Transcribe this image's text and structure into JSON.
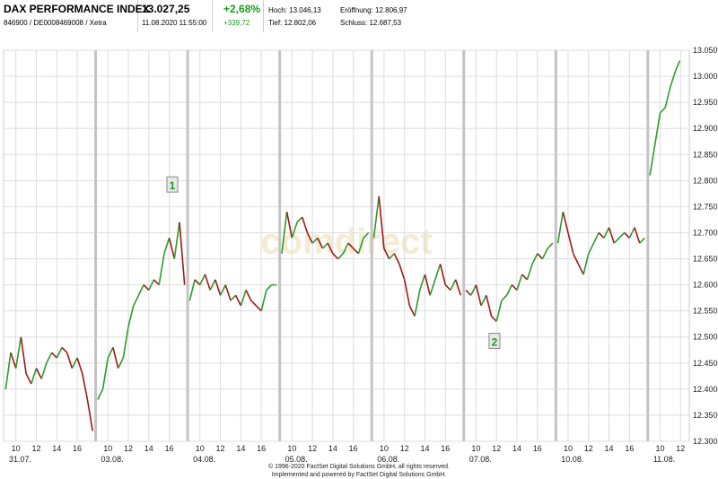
{
  "header": {
    "name": "DAX PERFORMANCE INDEX",
    "ids": "846900 / DE0008469008 / Xetra",
    "last": "13.027,25",
    "datetime": "11.08.2020 11:55:00",
    "change_pct": "+2,68%",
    "change_abs": "+339,72",
    "high_label": "Hoch:",
    "high_value": "13.046,13",
    "low_label": "Tief:",
    "low_value": "12.802,06",
    "open_label": "Eröffnung:",
    "open_value": "12.806,97",
    "close_label": "Schluss:",
    "close_value": "12.687,53"
  },
  "colors": {
    "up": "#2e9a2e",
    "down": "#a01818",
    "grid": "#dddddd",
    "session": "#c4c4c4",
    "accent_green": "#1c9a1c"
  },
  "watermark": "comdirect",
  "markers": [
    {
      "label": "1",
      "date": "03.08.",
      "hour": 16.3,
      "value": 12790
    },
    {
      "label": "2",
      "date": "07.08.",
      "hour": 11.8,
      "value": 12490
    }
  ],
  "copyright": {
    "line1": "© 1996-2020 FactSet Digital Solutions GmbH, all rights reserved.",
    "line2": "Implemented and powered by FactSet Digital Solutions GmbH."
  },
  "chart_data": {
    "type": "line",
    "title": "DAX PERFORMANCE INDEX",
    "ylim": [
      12300,
      13050
    ],
    "y_ticks": [
      "12.300",
      "12.350",
      "12.400",
      "12.450",
      "12.500",
      "12.550",
      "12.600",
      "12.650",
      "12.700",
      "12.750",
      "12.800",
      "12.850",
      "12.900",
      "12.950",
      "13.000",
      "13.050"
    ],
    "y_tick_values": [
      12300,
      12350,
      12400,
      12450,
      12500,
      12550,
      12600,
      12650,
      12700,
      12750,
      12800,
      12850,
      12900,
      12950,
      13000,
      13050
    ],
    "days": [
      {
        "date": "31.07.",
        "hour_ticks": [
          "10",
          "12",
          "14",
          "16"
        ],
        "points": [
          [
            9,
            12400
          ],
          [
            9.5,
            12470
          ],
          [
            10,
            12440
          ],
          [
            10.5,
            12500
          ],
          [
            11,
            12430
          ],
          [
            11.5,
            12410
          ],
          [
            12,
            12440
          ],
          [
            12.5,
            12420
          ],
          [
            13,
            12450
          ],
          [
            13.5,
            12470
          ],
          [
            14,
            12460
          ],
          [
            14.5,
            12480
          ],
          [
            15,
            12470
          ],
          [
            15.5,
            12440
          ],
          [
            16,
            12460
          ],
          [
            16.5,
            12430
          ],
          [
            17,
            12380
          ],
          [
            17.5,
            12320
          ]
        ]
      },
      {
        "date": "03.08.",
        "hour_ticks": [
          "10",
          "12",
          "14",
          "16"
        ],
        "points": [
          [
            9,
            12380
          ],
          [
            9.5,
            12400
          ],
          [
            10,
            12460
          ],
          [
            10.5,
            12480
          ],
          [
            11,
            12440
          ],
          [
            11.5,
            12460
          ],
          [
            12,
            12520
          ],
          [
            12.5,
            12560
          ],
          [
            13,
            12580
          ],
          [
            13.5,
            12600
          ],
          [
            14,
            12590
          ],
          [
            14.5,
            12610
          ],
          [
            15,
            12600
          ],
          [
            15.5,
            12660
          ],
          [
            16,
            12690
          ],
          [
            16.5,
            12650
          ],
          [
            17,
            12720
          ],
          [
            17.5,
            12600
          ]
        ]
      },
      {
        "date": "04.08.",
        "hour_ticks": [
          "10",
          "12",
          "14",
          "16"
        ],
        "points": [
          [
            9,
            12570
          ],
          [
            9.5,
            12610
          ],
          [
            10,
            12600
          ],
          [
            10.5,
            12620
          ],
          [
            11,
            12590
          ],
          [
            11.5,
            12610
          ],
          [
            12,
            12580
          ],
          [
            12.5,
            12600
          ],
          [
            13,
            12570
          ],
          [
            13.5,
            12580
          ],
          [
            14,
            12560
          ],
          [
            14.5,
            12590
          ],
          [
            15,
            12570
          ],
          [
            15.5,
            12560
          ],
          [
            16,
            12550
          ],
          [
            16.5,
            12590
          ],
          [
            17,
            12600
          ],
          [
            17.5,
            12600
          ]
        ]
      },
      {
        "date": "05.08.",
        "hour_ticks": [
          "10",
          "12",
          "14",
          "16"
        ],
        "points": [
          [
            9,
            12660
          ],
          [
            9.5,
            12740
          ],
          [
            10,
            12690
          ],
          [
            10.5,
            12720
          ],
          [
            11,
            12730
          ],
          [
            11.5,
            12700
          ],
          [
            12,
            12680
          ],
          [
            12.5,
            12690
          ],
          [
            13,
            12670
          ],
          [
            13.5,
            12680
          ],
          [
            14,
            12660
          ],
          [
            14.5,
            12650
          ],
          [
            15,
            12660
          ],
          [
            15.5,
            12680
          ],
          [
            16,
            12670
          ],
          [
            16.5,
            12660
          ],
          [
            17,
            12690
          ],
          [
            17.5,
            12700
          ]
        ]
      },
      {
        "date": "06.08.",
        "hour_ticks": [
          "10",
          "12",
          "14",
          "16"
        ],
        "points": [
          [
            9,
            12690
          ],
          [
            9.5,
            12770
          ],
          [
            10,
            12670
          ],
          [
            10.5,
            12650
          ],
          [
            11,
            12660
          ],
          [
            11.5,
            12640
          ],
          [
            12,
            12610
          ],
          [
            12.5,
            12560
          ],
          [
            13,
            12540
          ],
          [
            13.5,
            12590
          ],
          [
            14,
            12620
          ],
          [
            14.5,
            12580
          ],
          [
            15,
            12610
          ],
          [
            15.5,
            12640
          ],
          [
            16,
            12600
          ],
          [
            16.5,
            12590
          ],
          [
            17,
            12610
          ],
          [
            17.5,
            12580
          ]
        ]
      },
      {
        "date": "07.08.",
        "hour_ticks": [
          "10",
          "12",
          "14",
          "16"
        ],
        "points": [
          [
            9,
            12590
          ],
          [
            9.5,
            12580
          ],
          [
            10,
            12600
          ],
          [
            10.5,
            12560
          ],
          [
            11,
            12580
          ],
          [
            11.5,
            12540
          ],
          [
            12,
            12530
          ],
          [
            12.5,
            12570
          ],
          [
            13,
            12580
          ],
          [
            13.5,
            12600
          ],
          [
            14,
            12590
          ],
          [
            14.5,
            12620
          ],
          [
            15,
            12610
          ],
          [
            15.5,
            12640
          ],
          [
            16,
            12660
          ],
          [
            16.5,
            12650
          ],
          [
            17,
            12670
          ],
          [
            17.5,
            12680
          ]
        ]
      },
      {
        "date": "10.08.",
        "hour_ticks": [
          "10",
          "12",
          "14",
          "16"
        ],
        "points": [
          [
            9,
            12680
          ],
          [
            9.5,
            12740
          ],
          [
            10,
            12700
          ],
          [
            10.5,
            12660
          ],
          [
            11,
            12640
          ],
          [
            11.5,
            12620
          ],
          [
            12,
            12660
          ],
          [
            12.5,
            12680
          ],
          [
            13,
            12700
          ],
          [
            13.5,
            12690
          ],
          [
            14,
            12710
          ],
          [
            14.5,
            12680
          ],
          [
            15,
            12690
          ],
          [
            15.5,
            12700
          ],
          [
            16,
            12690
          ],
          [
            16.5,
            12710
          ],
          [
            17,
            12680
          ],
          [
            17.5,
            12690
          ]
        ]
      },
      {
        "date": "11.08.",
        "hour_ticks": [
          "10",
          "12"
        ],
        "points": [
          [
            9,
            12810
          ],
          [
            9.5,
            12870
          ],
          [
            10,
            12930
          ],
          [
            10.5,
            12940
          ],
          [
            11,
            12980
          ],
          [
            11.5,
            13010
          ],
          [
            11.92,
            13030
          ]
        ]
      }
    ]
  }
}
